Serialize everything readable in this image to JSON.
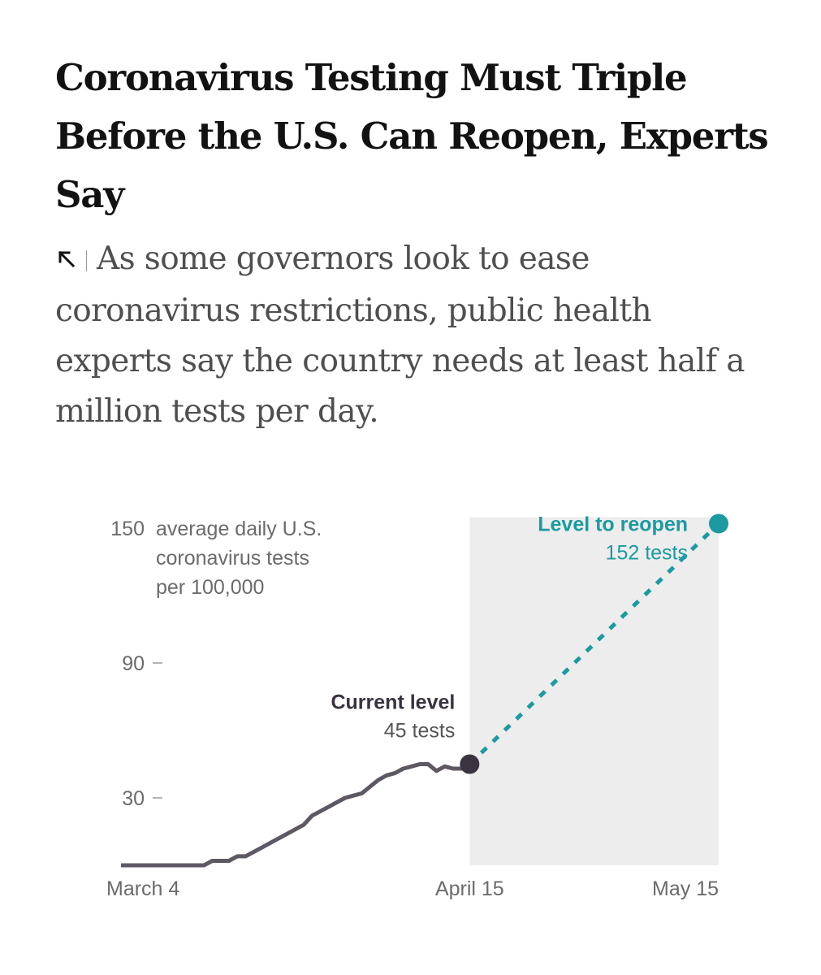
{
  "article": {
    "headline": "Coronavirus Testing Must Triple Before the U.S. Can Reopen, Experts Say",
    "summary": "As some governors look to ease coronavirus restrictions, public health experts say the country needs at least half a million tests per day.",
    "summary_icon": "arrow-up-left-icon"
  },
  "chart_data": {
    "type": "line",
    "title": "",
    "ylabel": "average daily U.S. coronavirus tests per 100,000",
    "ylabel_lines": [
      "average daily U.S.",
      "coronavirus tests",
      "per 100,000"
    ],
    "ylim": [
      0,
      152
    ],
    "xlim": [
      "2020-03-04",
      "2020-05-15"
    ],
    "grid": false,
    "legend": "none",
    "y_ticks": [
      {
        "value": 150,
        "label": "150"
      },
      {
        "value": 90,
        "label": "90"
      },
      {
        "value": 30,
        "label": "30"
      }
    ],
    "x_ticks": [
      {
        "value": "2020-03-04",
        "label": "March 4"
      },
      {
        "value": "2020-04-15",
        "label": "April 15"
      },
      {
        "value": "2020-05-15",
        "label": "May 15"
      }
    ],
    "shaded_region": {
      "from": "2020-04-15",
      "to": "2020-05-15",
      "color": "#ededed"
    },
    "series": [
      {
        "color": "#5e5862",
        "style": "solid",
        "points": [
          [
            "2020-03-04",
            0
          ],
          [
            "2020-03-05",
            0
          ],
          [
            "2020-03-06",
            0
          ],
          [
            "2020-03-07",
            0
          ],
          [
            "2020-03-08",
            0
          ],
          [
            "2020-03-09",
            0
          ],
          [
            "2020-03-10",
            0
          ],
          [
            "2020-03-11",
            0
          ],
          [
            "2020-03-12",
            0
          ],
          [
            "2020-03-13",
            0
          ],
          [
            "2020-03-14",
            0
          ],
          [
            "2020-03-15",
            2
          ],
          [
            "2020-03-16",
            2
          ],
          [
            "2020-03-17",
            2
          ],
          [
            "2020-03-18",
            4
          ],
          [
            "2020-03-19",
            4
          ],
          [
            "2020-03-20",
            6
          ],
          [
            "2020-03-21",
            8
          ],
          [
            "2020-03-22",
            10
          ],
          [
            "2020-03-23",
            12
          ],
          [
            "2020-03-24",
            14
          ],
          [
            "2020-03-25",
            16
          ],
          [
            "2020-03-26",
            18
          ],
          [
            "2020-03-27",
            22
          ],
          [
            "2020-03-28",
            24
          ],
          [
            "2020-03-29",
            26
          ],
          [
            "2020-03-30",
            28
          ],
          [
            "2020-03-31",
            30
          ],
          [
            "2020-04-01",
            31
          ],
          [
            "2020-04-02",
            32
          ],
          [
            "2020-04-03",
            35
          ],
          [
            "2020-04-04",
            38
          ],
          [
            "2020-04-05",
            40
          ],
          [
            "2020-04-06",
            41
          ],
          [
            "2020-04-07",
            43
          ],
          [
            "2020-04-08",
            44
          ],
          [
            "2020-04-09",
            45
          ],
          [
            "2020-04-10",
            45
          ],
          [
            "2020-04-11",
            42
          ],
          [
            "2020-04-12",
            44
          ],
          [
            "2020-04-13",
            43
          ],
          [
            "2020-04-14",
            43
          ],
          [
            "2020-04-15",
            45
          ]
        ]
      },
      {
        "color": "#1b9aa2",
        "style": "dashed",
        "points": [
          [
            "2020-04-15",
            45
          ],
          [
            "2020-05-15",
            152
          ]
        ]
      }
    ],
    "annotations": [
      {
        "x": "2020-04-15",
        "y": 45,
        "label": "Current level",
        "value_label": "45 tests",
        "color": "#3a3340"
      },
      {
        "x": "2020-05-15",
        "y": 152,
        "label": "Level to reopen",
        "value_label": "152 tests",
        "color": "#1b9aa2"
      }
    ]
  }
}
